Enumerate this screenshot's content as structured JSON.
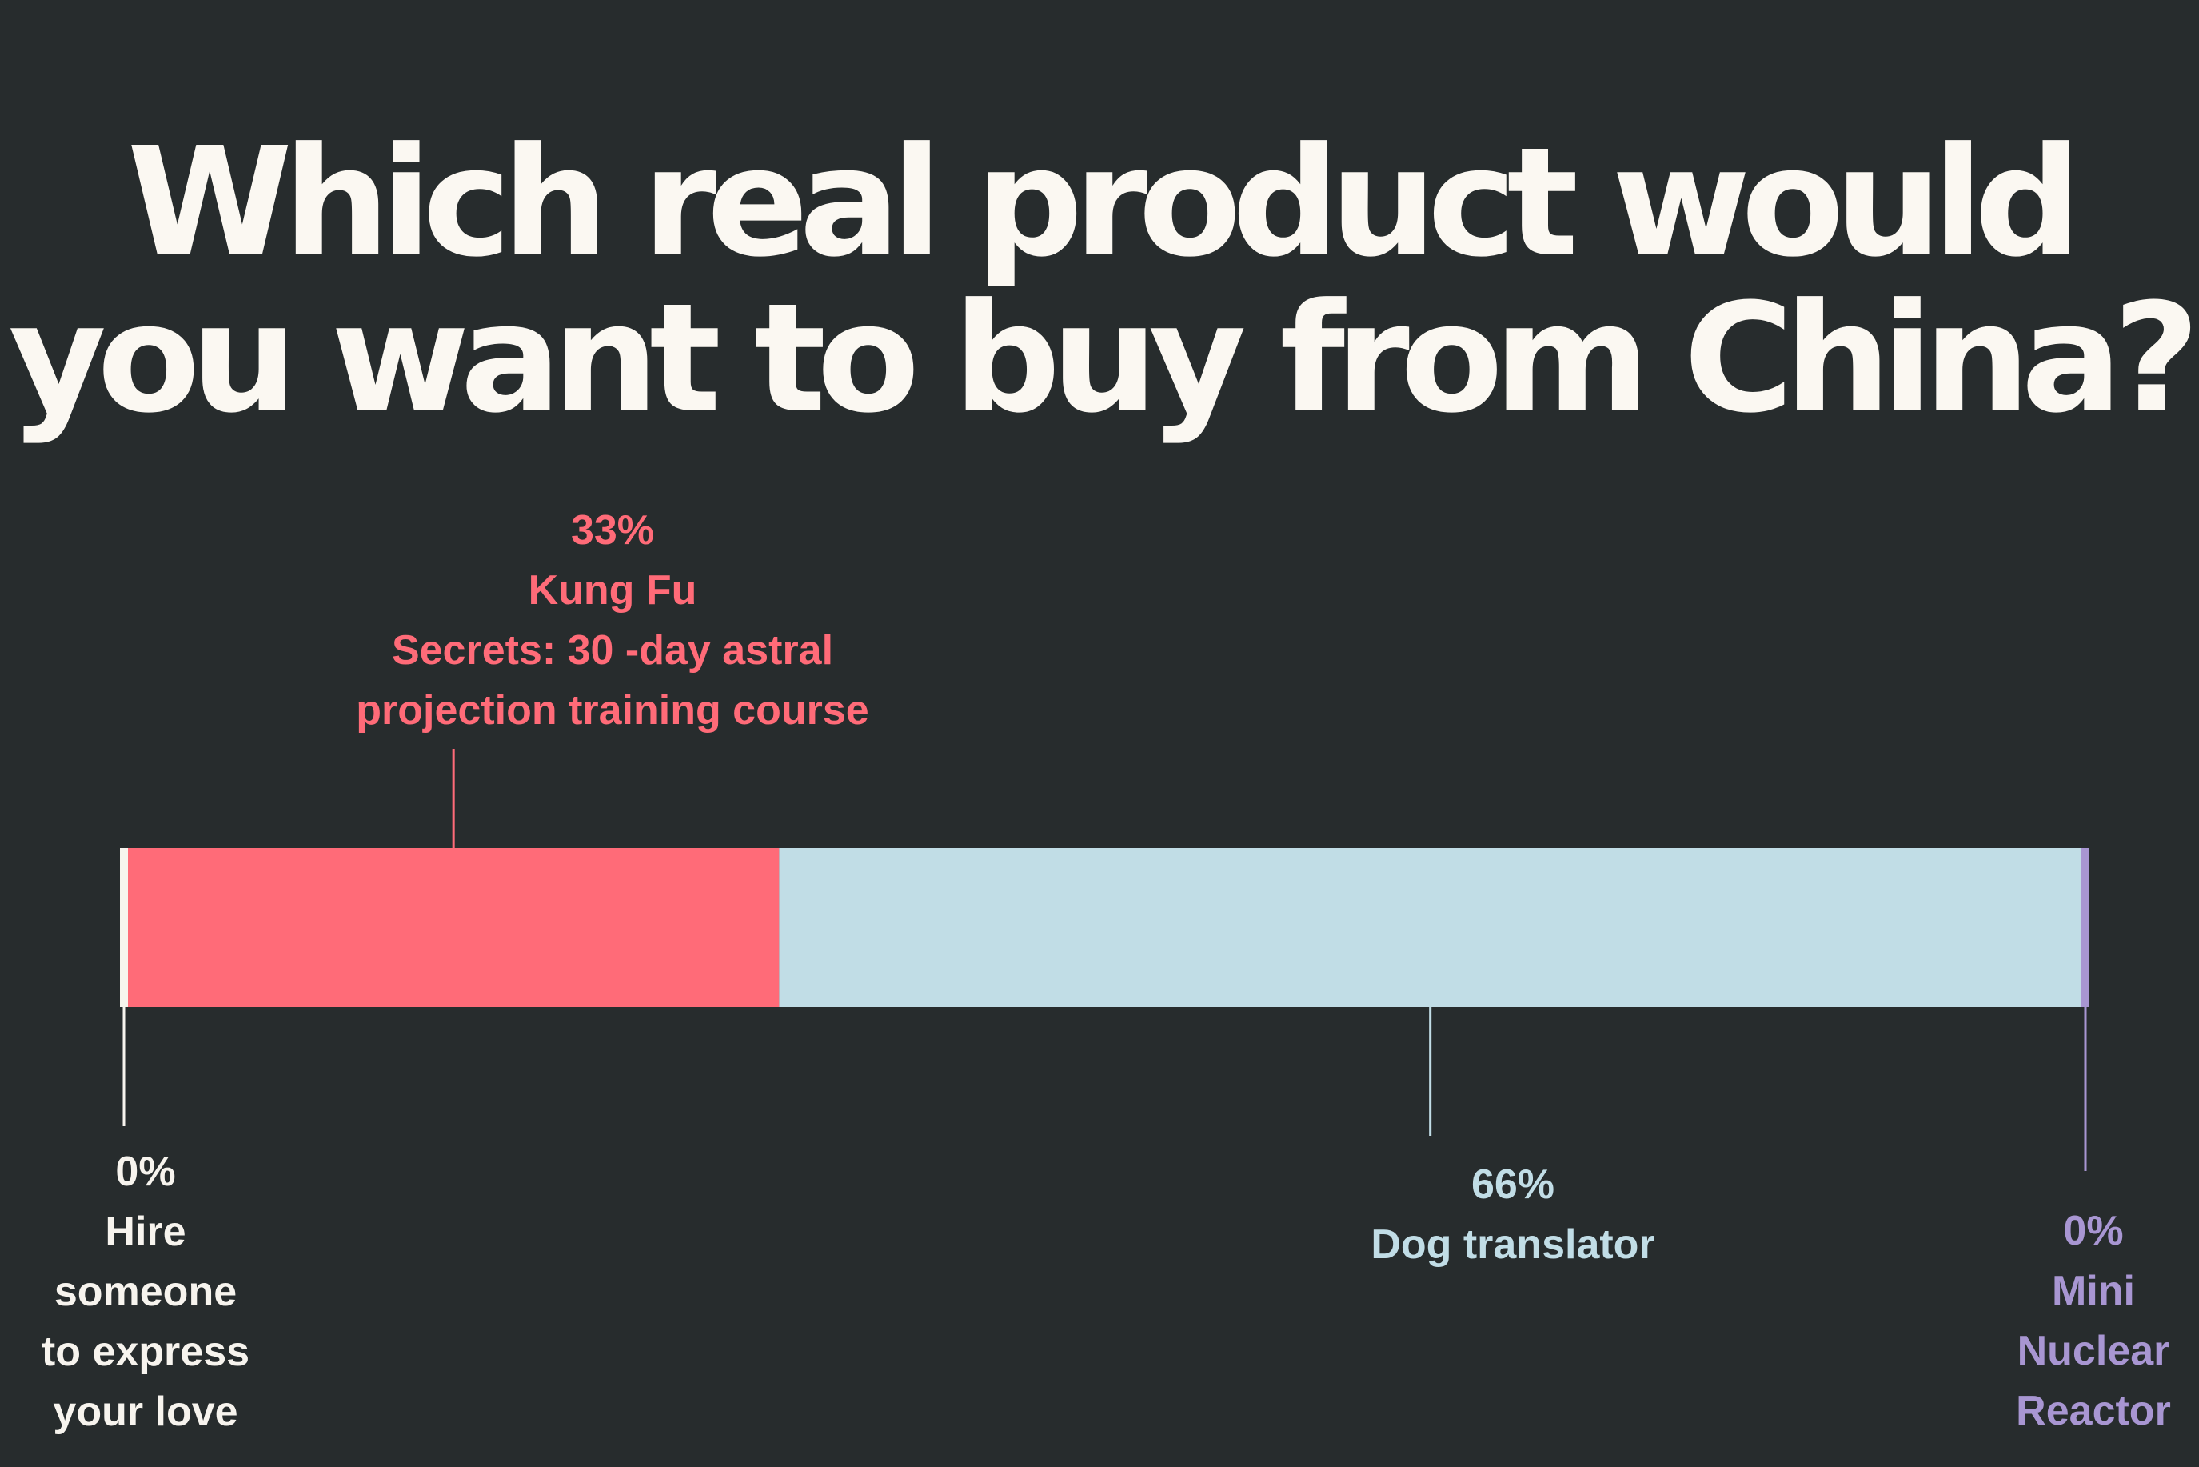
{
  "title": {
    "line1": "Which real product would",
    "line2": "you want to buy from China?"
  },
  "colors": {
    "background": "#272c2d",
    "title": "#fbf8f2"
  },
  "chart_data": {
    "type": "bar",
    "orientation": "horizontal",
    "stacked": true,
    "unit": "%",
    "xlim": [
      0,
      100
    ],
    "title": "Which real product would you want to buy from China?",
    "series": [
      {
        "name": "Hire someone to express your love",
        "value": 0,
        "label_value": "0%",
        "label_lines": [
          "Hire",
          "someone",
          "to express",
          "your love"
        ],
        "color": "#f7f4ee"
      },
      {
        "name": "Kung Fu Secrets: 30 -day astral projection training course",
        "value": 33,
        "label_value": "33%",
        "label_lines": [
          "Kung Fu",
          "Secrets: 30 -day astral",
          "projection training course"
        ],
        "color": "#ff6b78"
      },
      {
        "name": "Dog translator",
        "value": 66,
        "label_value": "66%",
        "label_lines": [
          "Dog translator"
        ],
        "color": "#c1dde6"
      },
      {
        "name": "Mini Nuclear Reactor",
        "value": 0,
        "label_value": "0%",
        "label_lines": [
          "Mini",
          "Nuclear",
          "Reactor"
        ],
        "color": "#a896d2"
      }
    ]
  }
}
